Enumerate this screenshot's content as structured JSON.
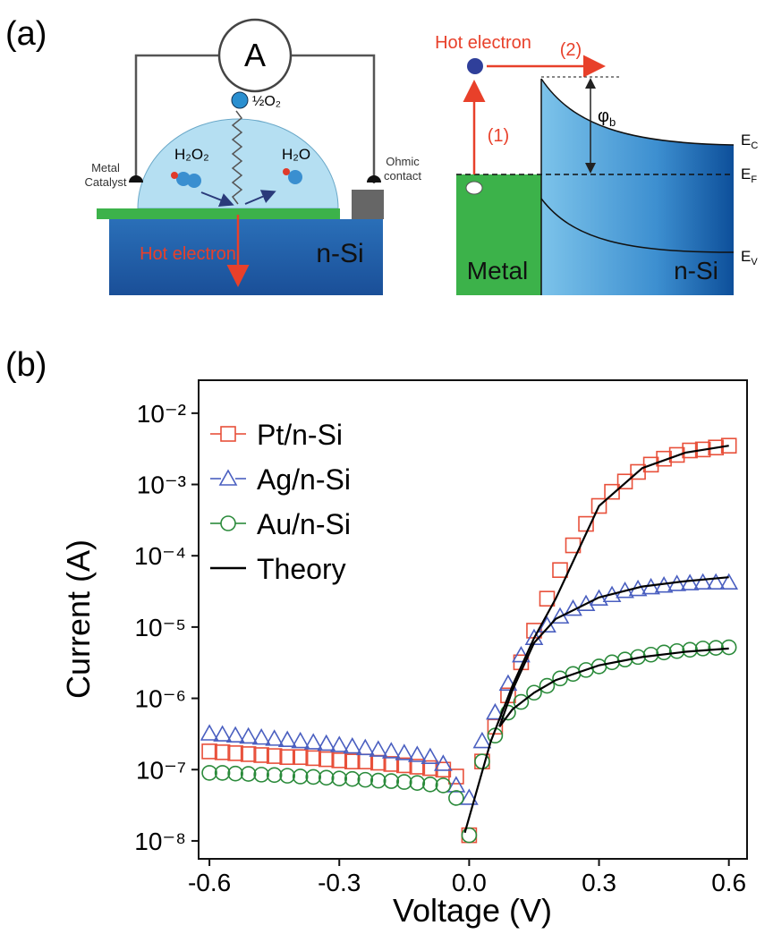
{
  "diagram": {
    "panel_label": "(a)",
    "ammeter": "A",
    "oxygen": "½O₂",
    "h2o2": "H₂O₂",
    "h2o": "H₂O",
    "metal_catalyst": [
      "Metal",
      "Catalyst"
    ],
    "ohmic_contact": [
      "Ohmic",
      "contact"
    ],
    "hot_electron_left": "Hot electron",
    "substrate": "n-Si",
    "hot_electron_right": "Hot electron",
    "step2": "(2)",
    "step1": "(1)",
    "barrier": {
      "symbol": "φ",
      "sub": "b"
    },
    "levels": [
      {
        "main": "E",
        "sub": "C"
      },
      {
        "main": "E",
        "sub": "F"
      },
      {
        "main": "E",
        "sub": "V"
      }
    ],
    "metal": "Metal",
    "semiconductor": "n-Si"
  },
  "chart_data": {
    "type": "scatter",
    "panel_label": "(b)",
    "x_label": "Voltage (V)",
    "y_label": "Current (A)",
    "y_scale": "log",
    "xlim": [
      -0.625,
      0.642
    ],
    "ylim": [
      5.6e-09,
      0.029
    ],
    "xticks": [
      -0.6,
      -0.3,
      {
        "value": 0,
        "label": "0.0"
      },
      0.3,
      0.6
    ],
    "yticks": [
      {
        "value": 1e-08,
        "label": "10⁻⁸"
      },
      {
        "value": 1e-07,
        "label": "10⁻⁷"
      },
      {
        "value": 1e-06,
        "label": "10⁻⁶"
      },
      {
        "value": 1e-05,
        "label": "10⁻⁵"
      },
      {
        "value": 0.0001,
        "label": "10⁻⁴"
      },
      {
        "value": 0.001,
        "label": "10⁻³"
      },
      {
        "value": 0.01,
        "label": "10⁻²"
      }
    ],
    "legend": "upper left",
    "x": [
      -0.6,
      -0.57,
      -0.54,
      -0.51,
      -0.48,
      -0.45,
      -0.42,
      -0.39,
      -0.36,
      -0.33,
      -0.3,
      -0.27,
      -0.24,
      -0.21,
      -0.18,
      -0.15,
      -0.12,
      -0.09,
      -0.06,
      -0.03,
      0,
      0.03,
      0.06,
      0.09,
      0.12,
      0.15,
      0.18,
      0.21,
      0.24,
      0.27,
      0.3,
      0.33,
      0.36,
      0.39,
      0.42,
      0.45,
      0.48,
      0.51,
      0.54,
      0.57,
      0.6
    ],
    "series": [
      {
        "name": "Pt/n-Si",
        "color": "#e8503a",
        "marker": "square",
        "values": [
          1.8e-07,
          1.75e-07,
          1.7e-07,
          1.65e-07,
          1.6e-07,
          1.55e-07,
          1.5e-07,
          1.5e-07,
          1.45e-07,
          1.4e-07,
          1.35e-07,
          1.3e-07,
          1.3e-07,
          1.25e-07,
          1.2e-07,
          1.15e-07,
          1.1e-07,
          1.05e-07,
          1e-07,
          8e-08,
          1.2e-08,
          1.3e-07,
          4e-07,
          1.1e-06,
          3.2e-06,
          8.9e-06,
          2.5e-05,
          6.3e-05,
          0.00014,
          0.00028,
          0.0005,
          0.00079,
          0.0011,
          0.0015,
          0.0019,
          0.0023,
          0.0026,
          0.003,
          0.0031,
          0.0033,
          0.0035
        ]
      },
      {
        "name": "Ag/n-Si",
        "color": "#4a5fc0",
        "marker": "triangle",
        "values": [
          3.2e-07,
          3.1e-07,
          3e-07,
          2.9e-07,
          2.8e-07,
          2.7e-07,
          2.6e-07,
          2.5e-07,
          2.4e-07,
          2.3e-07,
          2.2e-07,
          2.1e-07,
          2e-07,
          1.9e-07,
          1.8e-07,
          1.7e-07,
          1.6e-07,
          1.5e-07,
          1.2e-07,
          6e-08,
          4e-08,
          2.5e-07,
          6.3e-07,
          1.6e-06,
          4e-06,
          7e-06,
          1.05e-05,
          1.4e-05,
          1.8e-05,
          2.1e-05,
          2.5e-05,
          2.8e-05,
          3.2e-05,
          3.4e-05,
          3.6e-05,
          3.8e-05,
          4e-05,
          4.1e-05,
          4.2e-05,
          4.2e-05,
          4.2e-05
        ]
      },
      {
        "name": "Au/n-Si",
        "color": "#2a8a3a",
        "marker": "circle",
        "values": [
          9e-08,
          9e-08,
          8.8e-08,
          8.7e-08,
          8.5e-08,
          8.4e-08,
          8.2e-08,
          8e-08,
          7.9e-08,
          7.7e-08,
          7.5e-08,
          7.4e-08,
          7.2e-08,
          7e-08,
          6.9e-08,
          6.7e-08,
          6.5e-08,
          6.2e-08,
          6e-08,
          4e-08,
          1.2e-08,
          1.3e-07,
          3e-07,
          6.3e-07,
          8.9e-07,
          1.2e-06,
          1.5e-06,
          1.9e-06,
          2.2e-06,
          2.5e-06,
          2.8e-06,
          3.2e-06,
          3.5e-06,
          3.8e-06,
          4.1e-06,
          4.4e-06,
          4.6e-06,
          4.8e-06,
          5e-06,
          5.1e-06,
          5.2e-06
        ]
      },
      {
        "name": "Theory",
        "color": "#000000",
        "marker": "line",
        "lines": [
          {
            "x": [
              -0.01,
              0.05,
              0.1,
              0.15,
              0.2,
              0.3,
              0.4,
              0.5,
              0.6
            ],
            "values": [
              1.3e-08,
              2.5e-07,
              1.5e-06,
              7e-06,
              2.5e-05,
              0.0005,
              0.0017,
              0.0028,
              0.0035
            ]
          },
          {
            "x": [
              0.07,
              0.1,
              0.15,
              0.2,
              0.3,
              0.4,
              0.5,
              0.6
            ],
            "values": [
              4e-07,
              1.3e-06,
              6e-06,
              1.3e-05,
              2.6e-05,
              3.7e-05,
              4.4e-05,
              5e-05
            ]
          },
          {
            "x": [
              0.07,
              0.1,
              0.15,
              0.2,
              0.3,
              0.4,
              0.5,
              0.6
            ],
            "values": [
              4e-07,
              7e-07,
              1.2e-06,
              1.8e-06,
              2.9e-06,
              3.8e-06,
              4.5e-06,
              5e-06
            ]
          }
        ]
      }
    ]
  }
}
